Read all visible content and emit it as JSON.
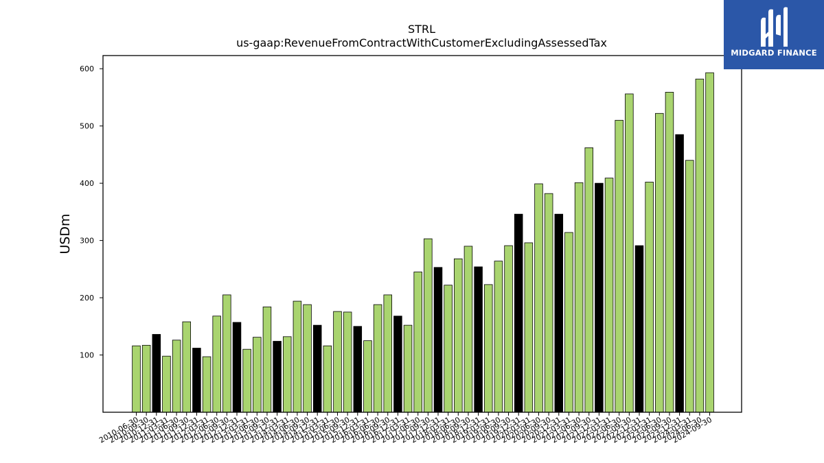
{
  "brand": {
    "name": "MIDGARD FINANCE",
    "bg": "#2b57a8"
  },
  "chart_data": {
    "type": "bar",
    "title": "STRL",
    "subtitle": "us-gaap:RevenueFromContractWithCustomerExcludingAssessedTax",
    "ylabel": "USDm",
    "xlabel": "",
    "ylim": [
      0,
      623
    ],
    "yticks": [
      100,
      200,
      300,
      400,
      500,
      600
    ],
    "grid": false,
    "colors": {
      "quarter": "#a9d46f",
      "annual": "#000000",
      "edge": "#000000"
    },
    "categories": [
      "2010-06-30",
      "2010-09-30",
      "2010-12-31",
      "2011-03-31",
      "2011-06-30",
      "2011-09-30",
      "2011-12-31",
      "2012-03-31",
      "2012-06-30",
      "2012-09-30",
      "2012-12-31",
      "2013-03-31",
      "2013-06-30",
      "2013-09-30",
      "2013-12-31",
      "2014-03-31",
      "2014-06-30",
      "2014-09-30",
      "2014-12-31",
      "2015-03-31",
      "2015-06-30",
      "2015-09-30",
      "2015-12-31",
      "2016-03-31",
      "2016-06-30",
      "2016-09-30",
      "2016-12-31",
      "2017-03-31",
      "2017-06-30",
      "2017-09-30",
      "2017-12-31",
      "2018-03-31",
      "2018-06-30",
      "2018-09-30",
      "2018-12-31",
      "2019-03-31",
      "2019-06-30",
      "2019-09-30",
      "2019-12-31",
      "2020-03-31",
      "2020-06-30",
      "2020-09-30",
      "2020-12-31",
      "2021-03-31",
      "2021-06-30",
      "2021-09-30",
      "2021-12-31",
      "2022-03-31",
      "2022-06-30",
      "2022-09-30",
      "2022-12-31",
      "2023-03-31",
      "2023-06-30",
      "2023-09-30",
      "2023-12-31",
      "2024-03-31",
      "2024-06-30",
      "2024-09-30"
    ],
    "values": [
      116,
      117,
      136,
      98,
      126,
      158,
      112,
      97,
      168,
      205,
      157,
      110,
      131,
      184,
      124,
      132,
      194,
      188,
      152,
      116,
      176,
      175,
      150,
      125,
      188,
      205,
      168,
      152,
      245,
      303,
      253,
      222,
      268,
      290,
      254,
      223,
      264,
      291,
      346,
      296,
      399,
      382,
      346,
      314,
      401,
      462,
      400,
      409,
      510,
      556,
      291,
      402,
      522,
      559,
      485,
      440,
      582,
      593
    ],
    "annual": [
      false,
      false,
      true,
      false,
      false,
      false,
      true,
      false,
      false,
      false,
      true,
      false,
      false,
      false,
      true,
      false,
      false,
      false,
      true,
      false,
      false,
      false,
      true,
      false,
      false,
      false,
      true,
      false,
      false,
      false,
      true,
      false,
      false,
      false,
      true,
      false,
      false,
      false,
      true,
      false,
      false,
      false,
      true,
      false,
      false,
      false,
      true,
      false,
      false,
      false,
      true,
      false,
      false,
      false,
      true,
      false,
      false,
      false
    ]
  }
}
